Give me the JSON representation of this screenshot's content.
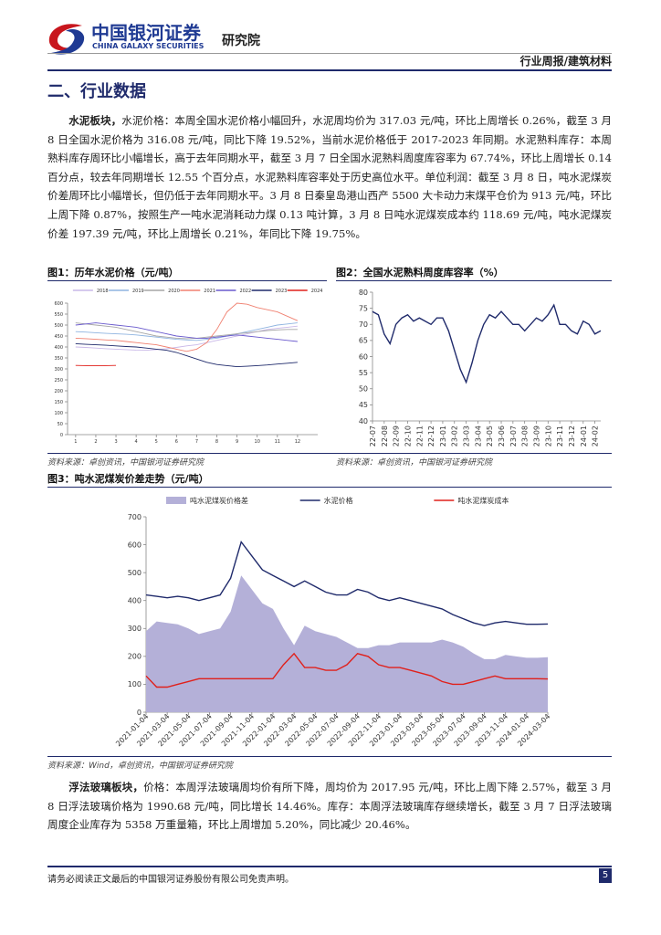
{
  "header": {
    "brand": "中国银河证券",
    "brand_en": "CHINA GALAXY SECURITIES",
    "institute": "研究院",
    "report_type": "行业周报/建筑材料"
  },
  "section_title": "二、行业数据",
  "paragraphs": [
    {
      "lead": "水泥板块，",
      "text": "水泥价格：本周全国水泥价格小幅回升，水泥周均价为 317.03 元/吨，环比上周增长 0.26%，截至 3 月 8 日全国水泥价格为 316.08 元/吨，同比下降 19.52%，当前水泥价格低于 2017-2023 年同期。水泥熟料库存：本周熟料库存周环比小幅增长，高于去年同期水平，截至 3 月 7 日全国水泥熟料周度库容率为 67.74%，环比上周增长 0.14 百分点，较去年同期增长 12.55 个百分点，水泥熟料库容率处于历史高位水平。单位利润：截至 3 月 8 日，吨水泥煤炭价差周环比小幅增长，但仍低于去年同期水平。3 月 8 日秦皇岛港山西产 5500 大卡动力末煤平仓价为 913 元/吨，环比上周下降 0.87%，按照生产一吨水泥消耗动力煤 0.13 吨计算，3 月 8 日吨水泥煤炭成本约 118.69 元/吨，吨水泥煤炭价差 197.39 元/吨，环比上周增长 0.21%，年同比下降 19.75%。"
    },
    {
      "lead": "浮法玻璃板块，",
      "text": "价格：本周浮法玻璃周均价有所下降，周均价为 2017.95 元/吨，环比上周下降 2.57%，截至 3 月 8 日浮法玻璃价格为 1990.68 元/吨，同比增长 14.46%。库存：本周浮法玻璃库存继续增长，截至 3 月 7 日浮法玻璃周度企业库存为 5358 万重量箱，环比上周增加 5.20%，同比减少 20.46%。"
    }
  ],
  "sources": [
    "资料来源：卓创资讯，中国银河证券研究院",
    "资料来源：卓创资讯，中国银河证券研究院",
    "资料来源：Wind，卓创资讯，中国银河证券研究院"
  ],
  "footer": {
    "disclaimer": "请务必阅读正文最后的中国银河证券股份有限公司免责声明。",
    "page": "5"
  },
  "chart_data": [
    {
      "type": "line",
      "title": "图1：历年水泥价格（元/吨）",
      "x": [
        1,
        1.5,
        2,
        2.5,
        3,
        3.5,
        4,
        4.5,
        5,
        5.5,
        6,
        6.5,
        7,
        7.5,
        8,
        8.5,
        9,
        9.5,
        10,
        10.5,
        11,
        11.5,
        12
      ],
      "xlim": [
        0.6,
        13
      ],
      "xticks": [
        1,
        2,
        3,
        4,
        5,
        6,
        7,
        8,
        9,
        10,
        11,
        12
      ],
      "ylim": [
        0,
        600
      ],
      "yticks": [
        0,
        50,
        100,
        150,
        200,
        250,
        300,
        350,
        400,
        450,
        500,
        550,
        600
      ],
      "series": [
        {
          "name": "2018",
          "color": "#c9b8e8",
          "values": [
            400,
            398,
            395,
            392,
            390,
            388,
            386,
            385,
            388,
            392,
            398,
            405,
            410,
            420,
            430,
            440,
            450,
            460,
            470,
            480,
            485,
            490,
            495
          ]
        },
        {
          "name": "2019",
          "color": "#8fb4e0",
          "values": [
            470,
            468,
            465,
            462,
            460,
            458,
            455,
            450,
            445,
            440,
            435,
            432,
            430,
            435,
            440,
            450,
            460,
            470,
            480,
            490,
            500,
            505,
            510
          ]
        },
        {
          "name": "2020",
          "color": "#a6a6a6",
          "values": [
            510,
            505,
            500,
            495,
            490,
            480,
            470,
            460,
            450,
            445,
            440,
            438,
            440,
            445,
            450,
            455,
            460,
            465,
            470,
            475,
            478,
            480,
            480
          ]
        },
        {
          "name": "2021",
          "color": "#f08070",
          "values": [
            440,
            438,
            435,
            432,
            430,
            425,
            420,
            415,
            410,
            400,
            390,
            380,
            390,
            420,
            480,
            560,
            600,
            595,
            580,
            570,
            560,
            540,
            520
          ]
        },
        {
          "name": "2022",
          "color": "#6a5acd",
          "values": [
            500,
            505,
            510,
            505,
            500,
            495,
            490,
            480,
            470,
            460,
            450,
            445,
            440,
            440,
            445,
            450,
            455,
            450,
            445,
            440,
            435,
            430,
            425
          ]
        },
        {
          "name": "2023",
          "color": "#1f2a6b",
          "values": [
            415,
            412,
            410,
            408,
            405,
            402,
            400,
            395,
            390,
            385,
            375,
            360,
            345,
            330,
            320,
            315,
            310,
            312,
            315,
            318,
            322,
            326,
            330
          ]
        },
        {
          "name": "2024",
          "color": "#e0201b",
          "values": [
            316,
            315,
            314,
            315,
            316,
            null,
            null,
            null,
            null,
            null,
            null,
            null,
            null,
            null,
            null,
            null,
            null,
            null,
            null,
            null,
            null,
            null,
            null
          ]
        }
      ]
    },
    {
      "type": "line",
      "title": "图2：全国水泥熟料周度库容率（%）",
      "categories": [
        "22-07",
        null,
        "22-08",
        null,
        "22-09",
        null,
        "22-10",
        null,
        "22-11",
        null,
        "22-12",
        null,
        "23-01",
        null,
        "23-02",
        null,
        "23-03",
        null,
        "23-04",
        null,
        "23-05",
        null,
        "23-06",
        null,
        "23-07",
        null,
        "23-08",
        null,
        "23-09",
        null,
        "23-10",
        null,
        "23-11",
        null,
        "23-12",
        null,
        "24-01",
        null,
        "24-02",
        null
      ],
      "x_label_rotation": 90,
      "ylim": [
        40,
        80
      ],
      "yticks": [
        40,
        45,
        50,
        55,
        60,
        65,
        70,
        75,
        80
      ],
      "series": [
        {
          "name": "全国水泥熟料周度库容率",
          "color": "#1f2a6b",
          "values": [
            74,
            73,
            67,
            64,
            70,
            72,
            73,
            71,
            72,
            71,
            70,
            72,
            72,
            68,
            62,
            56,
            52,
            58,
            65,
            70,
            73,
            72,
            74,
            72,
            70,
            70,
            68,
            70,
            72,
            71,
            73,
            76,
            70,
            70,
            68,
            67,
            71,
            70,
            67,
            68
          ]
        }
      ]
    },
    {
      "type": "line",
      "title": "图3：吨水泥煤炭价差走势（元/吨）",
      "categories": [
        "2021-01-04",
        null,
        "2021-03-04",
        null,
        "2021-05-04",
        null,
        "2021-07-04",
        null,
        "2021-09-04",
        null,
        "2021-11-04",
        null,
        "2022-01-04",
        null,
        "2022-03-04",
        null,
        "2022-05-04",
        null,
        "2022-07-04",
        null,
        "2022-09-04",
        null,
        "2022-11-04",
        null,
        "2023-01-04",
        null,
        "2023-03-04",
        null,
        "2023-05-04",
        null,
        "2023-07-04",
        null,
        "2023-09-04",
        null,
        "2023-11-04",
        null,
        "2024-01-04",
        null,
        "2024-03-04"
      ],
      "x_label_rotation": 45,
      "legend": "top",
      "ylim": [
        0,
        700
      ],
      "yticks": [
        0,
        100,
        200,
        300,
        400,
        500,
        600,
        700
      ],
      "series": [
        {
          "name": "吨水泥煤炭价格差",
          "color": "#b4b0d8",
          "style": "area",
          "values": [
            290,
            325,
            320,
            315,
            300,
            280,
            290,
            300,
            360,
            490,
            440,
            390,
            370,
            300,
            240,
            310,
            290,
            280,
            270,
            250,
            230,
            230,
            240,
            240,
            250,
            250,
            250,
            250,
            260,
            250,
            235,
            210,
            190,
            190,
            205,
            200,
            195,
            195,
            197
          ]
        },
        {
          "name": "水泥价格",
          "color": "#1f2a6b",
          "values": [
            420,
            415,
            410,
            415,
            410,
            400,
            410,
            420,
            480,
            610,
            560,
            510,
            490,
            470,
            450,
            470,
            450,
            430,
            420,
            420,
            440,
            430,
            410,
            400,
            410,
            400,
            390,
            380,
            370,
            350,
            335,
            320,
            310,
            320,
            325,
            320,
            315,
            315,
            316
          ]
        },
        {
          "name": "吨水泥煤炭成本",
          "color": "#e0201b",
          "values": [
            130,
            90,
            90,
            100,
            110,
            120,
            120,
            120,
            120,
            120,
            120,
            120,
            120,
            170,
            210,
            160,
            160,
            150,
            150,
            170,
            210,
            200,
            170,
            160,
            160,
            150,
            140,
            130,
            110,
            100,
            100,
            110,
            120,
            130,
            120,
            120,
            120,
            120,
            119
          ]
        }
      ]
    }
  ]
}
